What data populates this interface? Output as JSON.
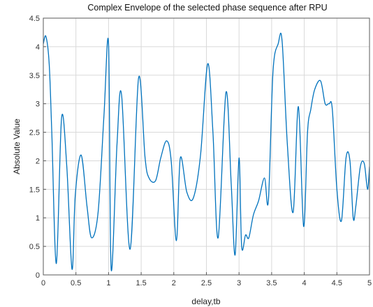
{
  "chart_data": {
    "type": "line",
    "title": "Complex Envelope of the selected phase sequence after RPU",
    "xlabel": "delay,tb",
    "ylabel": "Absolute Value",
    "xlim": [
      0,
      5
    ],
    "ylim": [
      0,
      4.5
    ],
    "grid": true,
    "xticks": [
      "0",
      "0.5",
      "1",
      "1.5",
      "2",
      "2.5",
      "3",
      "3.5",
      "4",
      "4.5",
      "5"
    ],
    "yticks": [
      "0",
      "0.5",
      "1",
      "1.5",
      "2",
      "2.5",
      "3",
      "3.5",
      "4",
      "4.5"
    ],
    "series": [
      {
        "color": "#0072bd",
        "x": [
          0,
          0.04,
          0.09,
          0.13,
          0.2,
          0.28,
          0.36,
          0.44,
          0.49,
          0.58,
          0.67,
          0.74,
          0.84,
          0.93,
          1.0,
          1.04,
          1.13,
          1.2,
          1.33,
          1.46,
          1.56,
          1.62,
          1.72,
          1.8,
          1.89,
          1.96,
          2.04,
          2.1,
          2.2,
          2.3,
          2.41,
          2.52,
          2.6,
          2.68,
          2.8,
          2.88,
          2.94,
          3.0,
          3.04,
          3.1,
          3.15,
          3.22,
          3.3,
          3.39,
          3.45,
          3.52,
          3.6,
          3.66,
          3.74,
          3.83,
          3.91,
          3.99,
          4.05,
          4.1,
          4.16,
          4.25,
          4.32,
          4.38,
          4.43,
          4.5,
          4.57,
          4.64,
          4.7,
          4.75,
          4.79,
          4.86,
          4.92,
          4.97,
          5.0
        ],
        "y": [
          4.05,
          4.18,
          3.7,
          2.5,
          0.2,
          2.75,
          1.9,
          0.1,
          1.4,
          2.1,
          1.2,
          0.65,
          1.1,
          2.8,
          4.05,
          0.1,
          2.3,
          3.15,
          0.45,
          3.45,
          2.05,
          1.7,
          1.65,
          2.05,
          2.35,
          2.0,
          0.6,
          2.05,
          1.45,
          1.35,
          2.1,
          3.7,
          2.5,
          0.65,
          3.2,
          1.6,
          0.35,
          2.05,
          0.5,
          0.7,
          0.65,
          1.05,
          1.3,
          1.7,
          1.3,
          3.55,
          4.05,
          4.1,
          2.3,
          1.1,
          2.95,
          0.85,
          2.5,
          2.9,
          3.25,
          3.4,
          3.0,
          3.0,
          2.9,
          1.5,
          0.95,
          2.05,
          2.0,
          1.0,
          1.2,
          1.9,
          1.95,
          1.5,
          1.9
        ]
      }
    ]
  }
}
